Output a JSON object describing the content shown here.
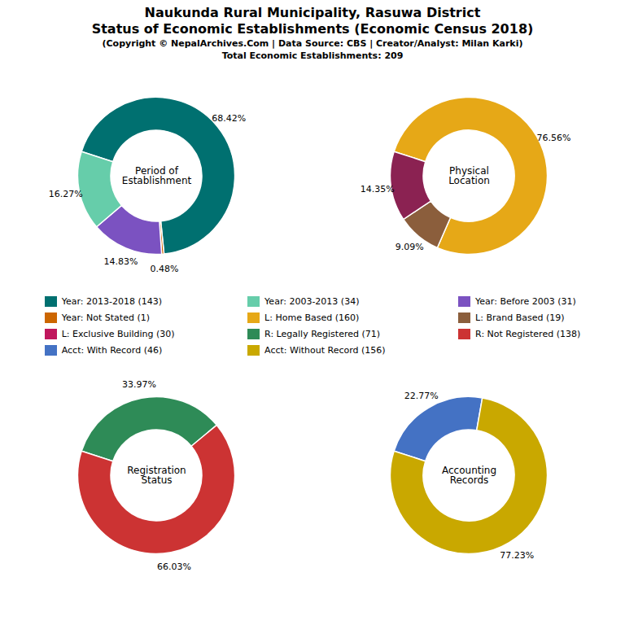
{
  "title": "Naukunda Rural Municipality, Rasuwa District\nStatus of Economic Establishments (Economic Census 2018)",
  "subtitle": "(Copyright © NepalArchives.Com | Data Source: CBS | Creator/Analyst: Milan Karki)\nTotal Economic Establishments: 209",
  "legend_entries": [
    {
      "label": "Year: 2013-2018 (143)",
      "color": "#007070"
    },
    {
      "label": "Year: Not Stated (1)",
      "color": "#cc6600"
    },
    {
      "label": "L: Exclusive Building (30)",
      "color": "#c0175d"
    },
    {
      "label": "Acct: With Record (46)",
      "color": "#4472c4"
    },
    {
      "label": "Year: 2003-2013 (34)",
      "color": "#66cdaa"
    },
    {
      "label": "L: Home Based (160)",
      "color": "#e6a817"
    },
    {
      "label": "R: Legally Registered (71)",
      "color": "#2e8b57"
    },
    {
      "label": "Acct: Without Record (156)",
      "color": "#c9a800"
    },
    {
      "label": "Year: Before 2003 (31)",
      "color": "#7b52c1"
    },
    {
      "label": "L: Brand Based (19)",
      "color": "#8b5e3c"
    },
    {
      "label": "R: Not Registered (138)",
      "color": "#cc3333"
    }
  ],
  "chart_data": [
    {
      "type": "pie",
      "title": "Period of\nEstablishment",
      "values": [
        68.42,
        0.48,
        14.83,
        16.27
      ],
      "value_labels": [
        "68.42%",
        "0.48%",
        "14.83%",
        "16.27%"
      ],
      "colors": [
        "#007070",
        "#cc6600",
        "#7b52c1",
        "#66cdaa"
      ],
      "data_labels": true
    },
    {
      "type": "pie",
      "title": "Physical\nLocation",
      "values": [
        76.56,
        9.09,
        14.35
      ],
      "value_labels": [
        "76.56%",
        "9.09%",
        "14.35%"
      ],
      "colors": [
        "#e6a817",
        "#8b5e3c",
        "#8b2252"
      ],
      "data_labels": true
    },
    {
      "type": "pie",
      "title": "Registration\nStatus",
      "values": [
        33.97,
        66.03
      ],
      "value_labels": [
        "33.97%",
        "66.03%"
      ],
      "colors": [
        "#2e8b57",
        "#cc3333"
      ],
      "data_labels": true
    },
    {
      "type": "pie",
      "title": "Accounting\nRecords",
      "values": [
        22.77,
        77.23
      ],
      "value_labels": [
        "22.77%",
        "77.23%"
      ],
      "colors": [
        "#4472c4",
        "#c9a800"
      ],
      "data_labels": true
    }
  ]
}
